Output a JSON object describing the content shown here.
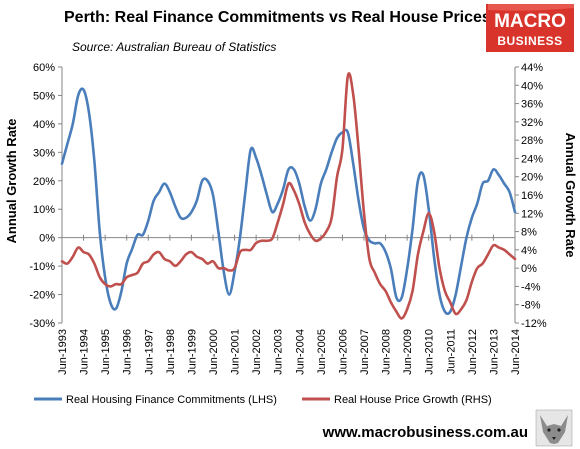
{
  "header": {
    "title": "Perth: Real Finance Commitments vs Real House Prices",
    "subtitle": "Source: Australian Bureau of Statistics"
  },
  "logo": {
    "line1": "MACRO",
    "line2": "BUSINESS",
    "bg_color": "#d9342b"
  },
  "footer": {
    "url": "www.macrobusiness.com.au"
  },
  "chart_data": {
    "type": "line",
    "title": "Perth: Real Finance Commitments vs Real House Prices",
    "ylabel": "Annual Growth Rate",
    "y2label": "Annual Growth Rate",
    "ylim": [
      -30,
      60
    ],
    "y2lim": [
      -12,
      44
    ],
    "yticks": [
      -30,
      -20,
      -10,
      0,
      10,
      20,
      30,
      40,
      50,
      60
    ],
    "y2ticks": [
      -12,
      -8,
      -4,
      0,
      4,
      8,
      12,
      16,
      20,
      24,
      28,
      32,
      36,
      40,
      44
    ],
    "ytick_labels": [
      "-30%",
      "-20%",
      "-10%",
      "0%",
      "10%",
      "20%",
      "30%",
      "40%",
      "50%",
      "60%"
    ],
    "y2tick_labels": [
      "-12%",
      "-8%",
      "-4%",
      "0%",
      "4%",
      "8%",
      "12%",
      "16%",
      "20%",
      "24%",
      "28%",
      "32%",
      "36%",
      "40%",
      "44%"
    ],
    "x_start_year": 1993,
    "x_end_year": 2014,
    "xtick_labels": [
      "Jun-1993",
      "Jun-1994",
      "Jun-1995",
      "Jun-1996",
      "Jun-1997",
      "Jun-1998",
      "Jun-1999",
      "Jun-2000",
      "Jun-2001",
      "Jun-2002",
      "Jun-2003",
      "Jun-2004",
      "Jun-2005",
      "Jun-2006",
      "Jun-2007",
      "Jun-2008",
      "Jun-2009",
      "Jun-2010",
      "Jun-2011",
      "Jun-2012",
      "Jun-2013",
      "Jun-2014"
    ],
    "legend_position": "bottom",
    "grid": false,
    "series": [
      {
        "name": "Real Housing Finance Commitments (LHS)",
        "axis": "left",
        "color": "#4a7ebb",
        "points": [
          [
            "Jun-1993",
            26
          ],
          [
            "Sep-1993",
            33
          ],
          [
            "Dec-1993",
            40
          ],
          [
            "Mar-1994",
            50
          ],
          [
            "Jun-1994",
            52
          ],
          [
            "Sep-1994",
            44
          ],
          [
            "Dec-1994",
            27
          ],
          [
            "Mar-1995",
            2
          ],
          [
            "Jun-1995",
            -14
          ],
          [
            "Sep-1995",
            -23
          ],
          [
            "Dec-1995",
            -25
          ],
          [
            "Mar-1996",
            -19
          ],
          [
            "Jun-1996",
            -9
          ],
          [
            "Sep-1996",
            -4
          ],
          [
            "Dec-1996",
            1
          ],
          [
            "Mar-1997",
            1
          ],
          [
            "Jun-1997",
            6
          ],
          [
            "Sep-1997",
            13
          ],
          [
            "Dec-1997",
            16
          ],
          [
            "Mar-1998",
            19
          ],
          [
            "Jun-1998",
            16
          ],
          [
            "Sep-1998",
            11
          ],
          [
            "Dec-1998",
            7
          ],
          [
            "Mar-1999",
            7
          ],
          [
            "Jun-1999",
            9
          ],
          [
            "Sep-1999",
            13
          ],
          [
            "Dec-1999",
            20
          ],
          [
            "Mar-2000",
            20
          ],
          [
            "Jun-2000",
            15
          ],
          [
            "Sep-2000",
            2
          ],
          [
            "Dec-2000",
            -12
          ],
          [
            "Mar-2001",
            -20
          ],
          [
            "Jun-2001",
            -12
          ],
          [
            "Sep-2001",
            0
          ],
          [
            "Dec-2001",
            16
          ],
          [
            "Mar-2002",
            31
          ],
          [
            "Jun-2002",
            28
          ],
          [
            "Sep-2002",
            22
          ],
          [
            "Dec-2002",
            15
          ],
          [
            "Mar-2003",
            9
          ],
          [
            "Jun-2003",
            12
          ],
          [
            "Sep-2003",
            17
          ],
          [
            "Dec-2003",
            24
          ],
          [
            "Mar-2004",
            24
          ],
          [
            "Jun-2004",
            19
          ],
          [
            "Sep-2004",
            11
          ],
          [
            "Dec-2004",
            6
          ],
          [
            "Mar-2005",
            10
          ],
          [
            "Jun-2005",
            19
          ],
          [
            "Sep-2005",
            24
          ],
          [
            "Dec-2005",
            30
          ],
          [
            "Mar-2006",
            35
          ],
          [
            "Jun-2006",
            37
          ],
          [
            "Sep-2006",
            37
          ],
          [
            "Dec-2006",
            26
          ],
          [
            "Mar-2007",
            13
          ],
          [
            "Jun-2007",
            3
          ],
          [
            "Sep-2007",
            -1
          ],
          [
            "Dec-2007",
            -2
          ],
          [
            "Mar-2008",
            -2
          ],
          [
            "Jun-2008",
            -5
          ],
          [
            "Sep-2008",
            -11
          ],
          [
            "Dec-2008",
            -21
          ],
          [
            "Mar-2009",
            -21
          ],
          [
            "Jun-2009",
            -11
          ],
          [
            "Sep-2009",
            3
          ],
          [
            "Dec-2009",
            20
          ],
          [
            "Mar-2010",
            22
          ],
          [
            "Jun-2010",
            10
          ],
          [
            "Sep-2010",
            -7
          ],
          [
            "Dec-2010",
            -20
          ],
          [
            "Mar-2011",
            -26
          ],
          [
            "Jun-2011",
            -26
          ],
          [
            "Sep-2011",
            -20
          ],
          [
            "Dec-2011",
            -10
          ],
          [
            "Mar-2012",
            0
          ],
          [
            "Jun-2012",
            7
          ],
          [
            "Sep-2012",
            12
          ],
          [
            "Dec-2012",
            19
          ],
          [
            "Mar-2013",
            20
          ],
          [
            "Jun-2013",
            24
          ],
          [
            "Sep-2013",
            22
          ],
          [
            "Dec-2013",
            19
          ],
          [
            "Mar-2014",
            16
          ],
          [
            "Jun-2014",
            9
          ]
        ]
      },
      {
        "name": "Real House Price Growth (RHS)",
        "axis": "right",
        "color": "#c0504d",
        "points": [
          [
            "Jun-1993",
            1.5
          ],
          [
            "Sep-1993",
            1
          ],
          [
            "Dec-1993",
            2.5
          ],
          [
            "Mar-1994",
            4.5
          ],
          [
            "Jun-1994",
            3.5
          ],
          [
            "Sep-1994",
            3
          ],
          [
            "Dec-1994",
            1
          ],
          [
            "Mar-1995",
            -2
          ],
          [
            "Jun-1995",
            -3.5
          ],
          [
            "Sep-1995",
            -4
          ],
          [
            "Dec-1995",
            -3.5
          ],
          [
            "Mar-1996",
            -3.5
          ],
          [
            "Jun-1996",
            -2
          ],
          [
            "Sep-1996",
            -1.5
          ],
          [
            "Dec-1996",
            -1
          ],
          [
            "Mar-1997",
            1
          ],
          [
            "Jun-1997",
            1.5
          ],
          [
            "Sep-1997",
            3
          ],
          [
            "Dec-1997",
            3.5
          ],
          [
            "Mar-1998",
            2
          ],
          [
            "Jun-1998",
            1.5
          ],
          [
            "Sep-1998",
            0.5
          ],
          [
            "Dec-1998",
            1.5
          ],
          [
            "Mar-1999",
            3
          ],
          [
            "Jun-1999",
            3.5
          ],
          [
            "Sep-1999",
            2.5
          ],
          [
            "Dec-1999",
            2
          ],
          [
            "Mar-2000",
            1
          ],
          [
            "Jun-2000",
            1.5
          ],
          [
            "Sep-2000",
            0
          ],
          [
            "Dec-2000",
            0
          ],
          [
            "Mar-2001",
            -0.5
          ],
          [
            "Jun-2001",
            0
          ],
          [
            "Sep-2001",
            3.5
          ],
          [
            "Dec-2001",
            4
          ],
          [
            "Mar-2002",
            4
          ],
          [
            "Jun-2002",
            5.5
          ],
          [
            "Sep-2002",
            6
          ],
          [
            "Dec-2002",
            6
          ],
          [
            "Mar-2003",
            6.5
          ],
          [
            "Jun-2003",
            10
          ],
          [
            "Sep-2003",
            14
          ],
          [
            "Dec-2003",
            18.5
          ],
          [
            "Mar-2004",
            17
          ],
          [
            "Jun-2004",
            14
          ],
          [
            "Sep-2004",
            10
          ],
          [
            "Dec-2004",
            7.5
          ],
          [
            "Mar-2005",
            6
          ],
          [
            "Jun-2005",
            6.5
          ],
          [
            "Sep-2005",
            8
          ],
          [
            "Dec-2005",
            11
          ],
          [
            "Mar-2006",
            20
          ],
          [
            "Jun-2006",
            26
          ],
          [
            "Sep-2006",
            42
          ],
          [
            "Dec-2006",
            38
          ],
          [
            "Mar-2007",
            26
          ],
          [
            "Jun-2007",
            12
          ],
          [
            "Sep-2007",
            2
          ],
          [
            "Dec-2007",
            -1
          ],
          [
            "Mar-2008",
            -3.5
          ],
          [
            "Jun-2008",
            -5
          ],
          [
            "Sep-2008",
            -7.5
          ],
          [
            "Dec-2008",
            -9.5
          ],
          [
            "Mar-2009",
            -11
          ],
          [
            "Jun-2009",
            -9
          ],
          [
            "Sep-2009",
            -5
          ],
          [
            "Dec-2009",
            3
          ],
          [
            "Mar-2010",
            8
          ],
          [
            "Jun-2010",
            12
          ],
          [
            "Sep-2010",
            8
          ],
          [
            "Dec-2010",
            0
          ],
          [
            "Mar-2011",
            -5
          ],
          [
            "Jun-2011",
            -7.5
          ],
          [
            "Sep-2011",
            -10
          ],
          [
            "Dec-2011",
            -9
          ],
          [
            "Mar-2012",
            -7
          ],
          [
            "Jun-2012",
            -3
          ],
          [
            "Sep-2012",
            0
          ],
          [
            "Dec-2012",
            1
          ],
          [
            "Mar-2013",
            3
          ],
          [
            "Jun-2013",
            5
          ],
          [
            "Sep-2013",
            4.5
          ],
          [
            "Dec-2013",
            4
          ],
          [
            "Mar-2014",
            3
          ],
          [
            "Jun-2014",
            2
          ]
        ]
      }
    ]
  }
}
